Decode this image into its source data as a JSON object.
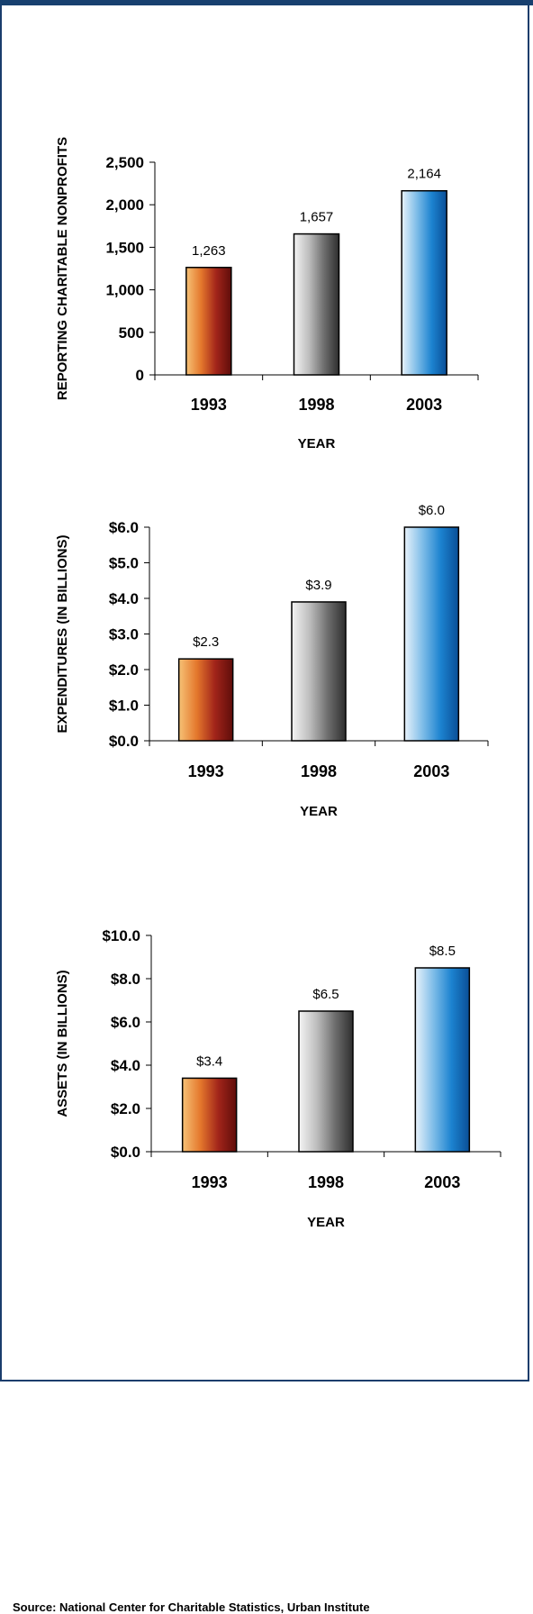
{
  "source": "Source: National Center for Charitable Statistics, Urban Institute",
  "colors": {
    "frame": "#1a3d6c",
    "bar_1993": [
      "#f6c276",
      "#e4772c",
      "#a1241a",
      "#5f0d0a"
    ],
    "bar_1998": [
      "#f4f4f4",
      "#bdbdbd",
      "#6e6e6e",
      "#2e2e2e"
    ],
    "bar_2003": [
      "#e8f2fb",
      "#7fbde8",
      "#1c83d0",
      "#0a4e96"
    ]
  },
  "chart_data": [
    {
      "type": "bar",
      "categories": [
        "1993",
        "1998",
        "2003"
      ],
      "values": [
        1263,
        1657,
        2164
      ],
      "value_labels": [
        "1,263",
        "1,657",
        "2,164"
      ],
      "xlabel": "YEAR",
      "ylabel": "REPORTING CHARITABLE NONPROFITS",
      "ylim": [
        0,
        2500
      ],
      "yticks": [
        0,
        500,
        1000,
        1500,
        2000,
        2500
      ],
      "ytick_labels": [
        "0",
        "500",
        "1,000",
        "1,500",
        "2,000",
        "2,500"
      ]
    },
    {
      "type": "bar",
      "categories": [
        "1993",
        "1998",
        "2003"
      ],
      "values": [
        2.3,
        3.9,
        6.0
      ],
      "value_labels": [
        "$2.3",
        "$3.9",
        "$6.0"
      ],
      "xlabel": "YEAR",
      "ylabel": "EXPENDITURES (IN BILLIONS)",
      "ylim": [
        0,
        6
      ],
      "yticks": [
        0,
        1,
        2,
        3,
        4,
        5,
        6
      ],
      "ytick_labels": [
        "$0.0",
        "$1.0",
        "$2.0",
        "$3.0",
        "$4.0",
        "$5.0",
        "$6.0"
      ]
    },
    {
      "type": "bar",
      "categories": [
        "1993",
        "1998",
        "2003"
      ],
      "values": [
        3.4,
        6.5,
        8.5
      ],
      "value_labels": [
        "$3.4",
        "$6.5",
        "$8.5"
      ],
      "xlabel": "YEAR",
      "ylabel": "ASSETS (IN BILLIONS)",
      "ylim": [
        0,
        10
      ],
      "yticks": [
        0,
        2,
        4,
        6,
        8,
        10
      ],
      "ytick_labels": [
        "$0.0",
        "$2.0",
        "$4.0",
        "$6.0",
        "$8.0",
        "$10.0"
      ]
    }
  ]
}
